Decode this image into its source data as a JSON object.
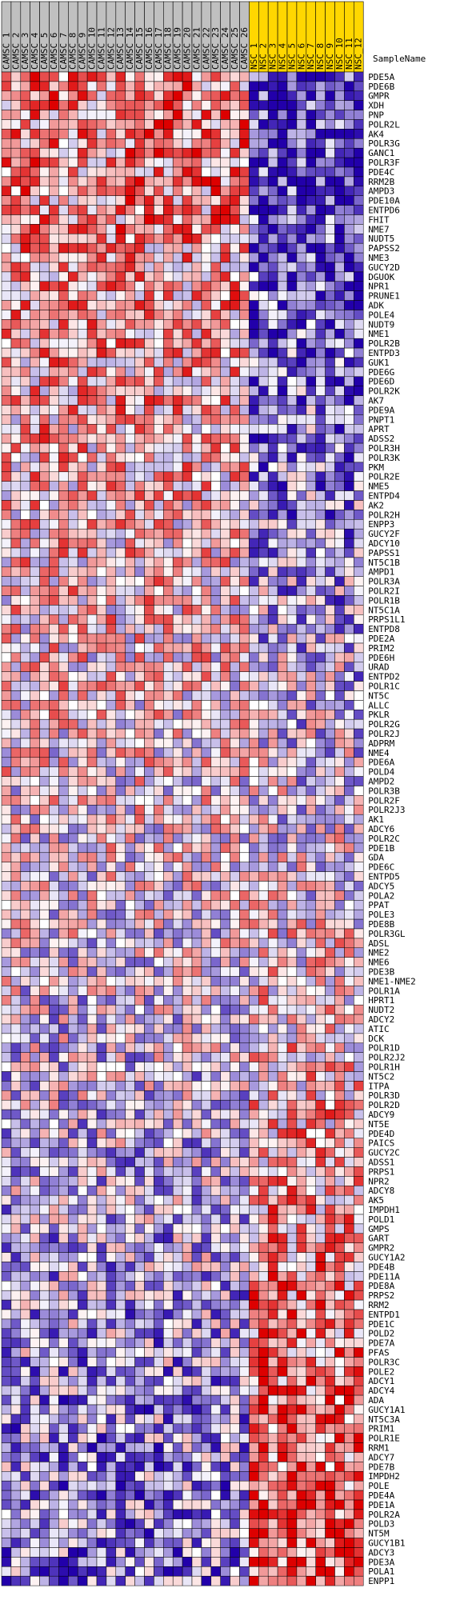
{
  "chart_data": {
    "type": "heatmap",
    "title": "",
    "columns_label": "SampleName",
    "columns": [
      {
        "name": "CAMSC_1",
        "group": "CAMSC"
      },
      {
        "name": "CAMSC_2",
        "group": "CAMSC"
      },
      {
        "name": "CAMSC_3",
        "group": "CAMSC"
      },
      {
        "name": "CAMSC_4",
        "group": "CAMSC"
      },
      {
        "name": "CAMSC_5",
        "group": "CAMSC"
      },
      {
        "name": "CAMSC_6",
        "group": "CAMSC"
      },
      {
        "name": "CAMSC_7",
        "group": "CAMSC"
      },
      {
        "name": "CAMSC_8",
        "group": "CAMSC"
      },
      {
        "name": "CAMSC_9",
        "group": "CAMSC"
      },
      {
        "name": "CAMSC_10",
        "group": "CAMSC"
      },
      {
        "name": "CAMSC_11",
        "group": "CAMSC"
      },
      {
        "name": "CAMSC_12",
        "group": "CAMSC"
      },
      {
        "name": "CAMSC_13",
        "group": "CAMSC"
      },
      {
        "name": "CAMSC_14",
        "group": "CAMSC"
      },
      {
        "name": "CAMSC_15",
        "group": "CAMSC"
      },
      {
        "name": "CAMSC_16",
        "group": "CAMSC"
      },
      {
        "name": "CAMSC_17",
        "group": "CAMSC"
      },
      {
        "name": "CAMSC_18",
        "group": "CAMSC"
      },
      {
        "name": "CAMSC_19",
        "group": "CAMSC"
      },
      {
        "name": "CAMSC_20",
        "group": "CAMSC"
      },
      {
        "name": "CAMSC_21",
        "group": "CAMSC"
      },
      {
        "name": "CAMSC_22",
        "group": "CAMSC"
      },
      {
        "name": "CAMSC_23",
        "group": "CAMSC"
      },
      {
        "name": "CAMSC_24",
        "group": "CAMSC"
      },
      {
        "name": "CAMSC_25",
        "group": "CAMSC"
      },
      {
        "name": "CAMSC_26",
        "group": "CAMSC"
      },
      {
        "name": "NSC_1",
        "group": "NSC"
      },
      {
        "name": "NSC_2",
        "group": "NSC"
      },
      {
        "name": "NSC_3",
        "group": "NSC"
      },
      {
        "name": "NSC_4",
        "group": "NSC"
      },
      {
        "name": "NSC_5",
        "group": "NSC"
      },
      {
        "name": "NSC_6",
        "group": "NSC"
      },
      {
        "name": "NSC_7",
        "group": "NSC"
      },
      {
        "name": "NSC_8",
        "group": "NSC"
      },
      {
        "name": "NSC_9",
        "group": "NSC"
      },
      {
        "name": "NSC_10",
        "group": "NSC"
      },
      {
        "name": "NSC_11",
        "group": "NSC"
      },
      {
        "name": "NSC_12",
        "group": "NSC"
      }
    ],
    "rows": [
      "PDE5A",
      "PDE6B",
      "GMPR",
      "XDH",
      "PNP",
      "POLR2L",
      "AK4",
      "POLR3G",
      "GANC1",
      "POLR3F",
      "PDE4C",
      "RRM2B",
      "AMPD3",
      "PDE10A",
      "ENTPD6",
      "FHIT",
      "NME7",
      "NUDT5",
      "PAPSS2",
      "NME3",
      "GUCY2D",
      "DGUOK",
      "NPR1",
      "PRUNE1",
      "ADK",
      "POLE4",
      "NUDT9",
      "NME1",
      "POLR2B",
      "ENTPD3",
      "GUK1",
      "PDE6G",
      "PDE6D",
      "POLR2K",
      "AK7",
      "PDE9A",
      "PNPT1",
      "APRT",
      "ADSS2",
      "POLR3H",
      "POLR3K",
      "PKM",
      "POLR2E",
      "NME5",
      "ENTPD4",
      "AK2",
      "POLR2H",
      "ENPP3",
      "GUCY2F",
      "ADCY10",
      "PAPSS1",
      "NT5C1B",
      "AMPD1",
      "POLR3A",
      "POLR2I",
      "POLR1B",
      "NT5C1A",
      "PRPS1L1",
      "ENTPD8",
      "PDE2A",
      "PRIM2",
      "PDE6H",
      "URAD",
      "ENTPD2",
      "POLR1C",
      "NT5C",
      "ALLC",
      "PKLR",
      "POLR2G",
      "POLR2J",
      "ADPRM",
      "NME4",
      "PDE6A",
      "POLD4",
      "AMPD2",
      "POLR3B",
      "POLR2F",
      "POLR2J3",
      "AK1",
      "ADCY6",
      "POLR2C",
      "PDE1B",
      "GDA",
      "PDE6C",
      "ENTPD5",
      "ADCY5",
      "POLA2",
      "PPAT",
      "POLE3",
      "PDE8B",
      "POLR3GL",
      "ADSL",
      "NME2",
      "NME6",
      "PDE3B",
      "NME1-NME2",
      "POLR1A",
      "HPRT1",
      "NUDT2",
      "ADCY2",
      "ATIC",
      "DCK",
      "POLR1D",
      "POLR2J2",
      "POLR1H",
      "NT5C2",
      "ITPA",
      "POLR3D",
      "POLR2D",
      "ADCY9",
      "NT5E",
      "PDE4D",
      "PAICS",
      "GUCY2C",
      "ADSS1",
      "PRPS1",
      "NPR2",
      "ADCY8",
      "AK5",
      "IMPDH1",
      "POLD1",
      "GMPS",
      "GART",
      "GMPR2",
      "GUCY1A2",
      "PDE4B",
      "PDE11A",
      "PDE8A",
      "PRPS2",
      "RRM2",
      "ENTPD1",
      "PDE1C",
      "POLD2",
      "PDE7A",
      "PFAS",
      "POLR3C",
      "POLE2",
      "ADCY1",
      "ADCY4",
      "ADA",
      "GUCY1A1",
      "NT5C3A",
      "PRIM1",
      "POLR1E",
      "RRM1",
      "ADCY7",
      "PDE7B",
      "IMPDH2",
      "POLE",
      "PDE4A",
      "PDE1A",
      "POLR2A",
      "POLD3",
      "NT5M",
      "GUCY1B1",
      "ADCY3",
      "PDE3A",
      "POLA1",
      "ENPP1"
    ],
    "color_scale": {
      "low": "#2200aa",
      "mid_low": "#9999ff",
      "mid": "#ffffff",
      "mid_high": "#ff9999",
      "high": "#dd0000"
    },
    "value_range": [
      -2,
      2
    ],
    "values": []
  },
  "colors": {
    "camsc_header": "#c0c0c0",
    "nsc_header": "#ffd700",
    "grid": "#000000"
  }
}
